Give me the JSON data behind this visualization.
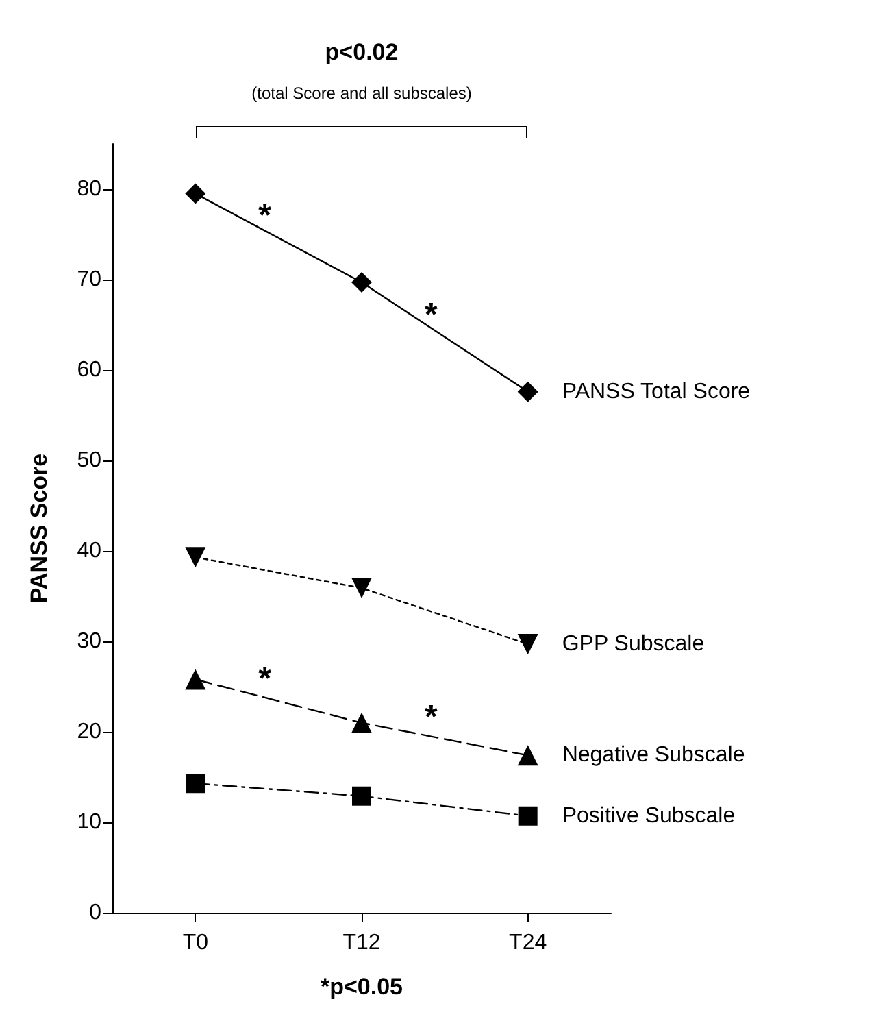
{
  "chart_data": {
    "type": "line",
    "title": "p<0.02",
    "subtitle": "(total Score and all subscales)",
    "ylabel": "PANSS Score",
    "categories": [
      "T0",
      "T12",
      "T24"
    ],
    "ylim": [
      0,
      85
    ],
    "yticks": [
      0,
      10,
      20,
      30,
      40,
      50,
      60,
      70,
      80
    ],
    "series": [
      {
        "name": "PANSS Total Score",
        "color": "#000000",
        "values": [
          79.5,
          69.7,
          57.6
        ],
        "marker": "diamond",
        "line_style": "solid"
      },
      {
        "name": "GPP Subscale",
        "color": "#000000",
        "values": [
          39.3,
          35.9,
          29.7
        ],
        "marker": "triangle-down",
        "line_style": "dotted"
      },
      {
        "name": "Negative Subscale",
        "color": "#000000",
        "values": [
          25.8,
          21.0,
          17.4
        ],
        "marker": "triangle",
        "line_style": "dashed"
      },
      {
        "name": "Positive Subscale",
        "color": "#000000",
        "values": [
          14.3,
          12.9,
          10.7
        ],
        "marker": "square",
        "line_style": "dashdot"
      }
    ],
    "annotations": [
      "*",
      "*",
      "*",
      "*",
      "*p<0.05"
    ]
  }
}
